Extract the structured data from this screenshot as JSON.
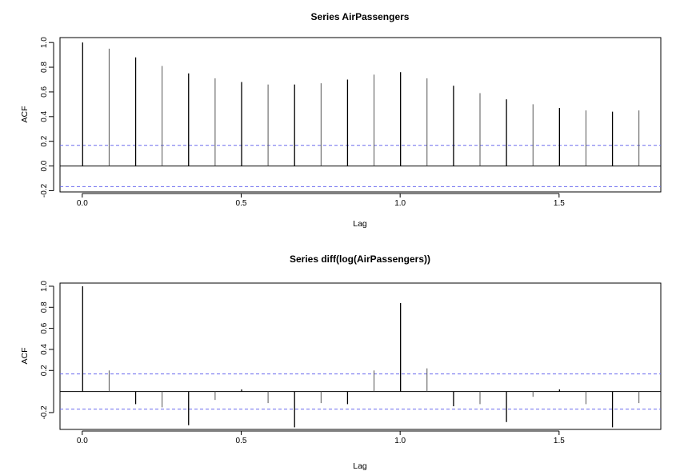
{
  "chart_data": [
    {
      "type": "bar",
      "title": "Series  AirPassengers",
      "xlabel": "Lag",
      "ylabel": "ACF",
      "xlim": [
        -0.07,
        1.82
      ],
      "ylim": [
        -0.21,
        1.04
      ],
      "x_ticks": [
        "0.0",
        "0.5",
        "1.0",
        "1.5"
      ],
      "x_tick_values": [
        0,
        0.5,
        1.0,
        1.5
      ],
      "y_ticks": [
        "-0.2",
        "0.0",
        "0.2",
        "0.4",
        "0.6",
        "0.8",
        "1.0"
      ],
      "y_tick_values": [
        -0.2,
        0.0,
        0.2,
        0.4,
        0.6,
        0.8,
        1.0
      ],
      "confidence_bounds": [
        0.167,
        -0.167
      ],
      "confidence_color": "#6a6aee",
      "x": [
        0,
        0.0833,
        0.1667,
        0.25,
        0.3333,
        0.4167,
        0.5,
        0.5833,
        0.6667,
        0.75,
        0.8333,
        0.9167,
        1.0,
        1.0833,
        1.1667,
        1.25,
        1.3333,
        1.4167,
        1.5,
        1.5833,
        1.6667,
        1.75
      ],
      "values": [
        1.0,
        0.95,
        0.88,
        0.81,
        0.75,
        0.71,
        0.68,
        0.66,
        0.66,
        0.67,
        0.7,
        0.74,
        0.76,
        0.71,
        0.65,
        0.59,
        0.54,
        0.5,
        0.47,
        0.45,
        0.44,
        0.45
      ]
    },
    {
      "type": "bar",
      "title": "Series  diff(log(AirPassengers))",
      "xlabel": "Lag",
      "ylabel": "ACF",
      "xlim": [
        -0.07,
        1.82
      ],
      "ylim": [
        -0.36,
        1.03
      ],
      "x_ticks": [
        "0.0",
        "0.5",
        "1.0",
        "1.5"
      ],
      "x_tick_values": [
        0,
        0.5,
        1.0,
        1.5
      ],
      "y_ticks": [
        "-0.2",
        "0.2",
        "0.4",
        "0.6",
        "0.8",
        "1.0"
      ],
      "y_tick_values": [
        -0.2,
        0.2,
        0.4,
        0.6,
        0.8,
        1.0
      ],
      "confidence_bounds": [
        0.167,
        -0.167
      ],
      "confidence_color": "#6a6aee",
      "x": [
        0,
        0.0833,
        0.1667,
        0.25,
        0.3333,
        0.4167,
        0.5,
        0.5833,
        0.6667,
        0.75,
        0.8333,
        0.9167,
        1.0,
        1.0833,
        1.1667,
        1.25,
        1.3333,
        1.4167,
        1.5,
        1.5833,
        1.6667,
        1.75
      ],
      "values": [
        1.0,
        0.2,
        -0.12,
        -0.15,
        -0.32,
        -0.08,
        0.02,
        -0.11,
        -0.34,
        -0.11,
        -0.12,
        0.2,
        0.84,
        0.22,
        -0.14,
        -0.12,
        -0.29,
        -0.05,
        0.02,
        -0.12,
        -0.34,
        -0.11
      ]
    }
  ]
}
